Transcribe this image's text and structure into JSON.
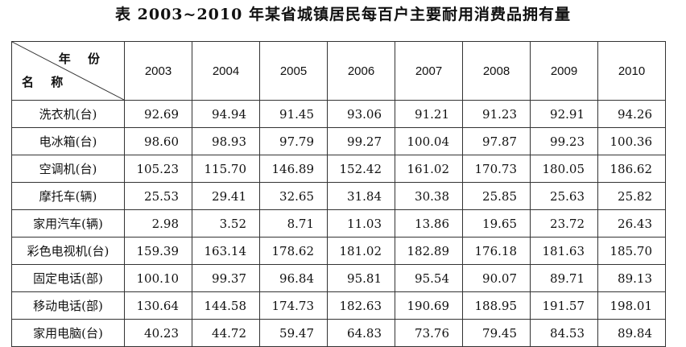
{
  "title": "表  2003~2010 年某省城镇居民每百户主要耐用消费品拥有量",
  "header": {
    "corner_top": "年 份",
    "corner_bottom": "名 称",
    "years": [
      "2003",
      "2004",
      "2005",
      "2006",
      "2007",
      "2008",
      "2009",
      "2010"
    ]
  },
  "rows": [
    {
      "name": "洗衣机(台)",
      "values": [
        "92.69",
        "94.94",
        "91.45",
        "93.06",
        "91.21",
        "91.23",
        "92.91",
        "94.26"
      ]
    },
    {
      "name": "电冰箱(台)",
      "values": [
        "98.60",
        "98.93",
        "97.79",
        "99.27",
        "100.04",
        "97.87",
        "99.23",
        "100.36"
      ]
    },
    {
      "name": "空调机(台)",
      "values": [
        "105.23",
        "115.70",
        "146.89",
        "152.42",
        "161.02",
        "170.73",
        "180.05",
        "186.62"
      ]
    },
    {
      "name": "摩托车(辆)",
      "values": [
        "25.53",
        "29.41",
        "32.65",
        "31.84",
        "30.38",
        "25.85",
        "25.63",
        "25.82"
      ]
    },
    {
      "name": "家用汽车(辆)",
      "values": [
        "2.98",
        "3.52",
        "8.71",
        "11.03",
        "13.86",
        "19.65",
        "23.72",
        "26.43"
      ]
    },
    {
      "name": "彩色电视机(台)",
      "values": [
        "159.39",
        "163.14",
        "178.62",
        "181.02",
        "182.89",
        "176.18",
        "181.63",
        "185.70"
      ]
    },
    {
      "name": "固定电话(部)",
      "values": [
        "100.10",
        "99.37",
        "96.84",
        "95.81",
        "95.54",
        "90.07",
        "89.71",
        "89.13"
      ]
    },
    {
      "name": "移动电话(部)",
      "values": [
        "130.64",
        "144.58",
        "174.73",
        "182.63",
        "190.69",
        "188.95",
        "191.57",
        "198.01"
      ]
    },
    {
      "name": "家用电脑(台)",
      "values": [
        "40.23",
        "44.72",
        "59.47",
        "64.83",
        "73.76",
        "79.45",
        "84.53",
        "89.84"
      ]
    }
  ]
}
